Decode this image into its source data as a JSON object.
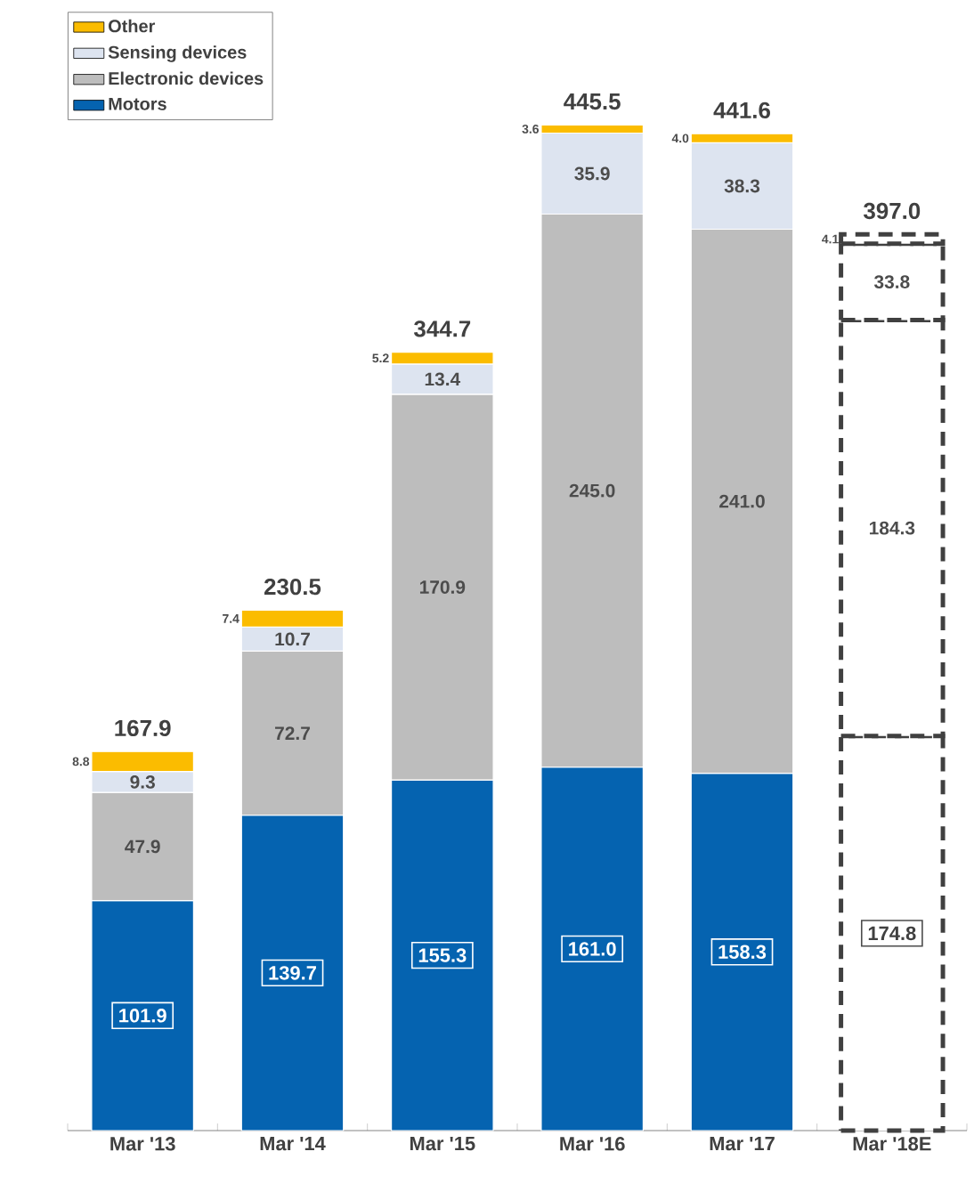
{
  "chart_data": {
    "type": "bar",
    "stacked": true,
    "legend": "top left",
    "categories": [
      "Mar '13",
      "Mar '14",
      "Mar '15",
      "Mar '16",
      "Mar '17",
      "Mar '18E"
    ],
    "series": [
      {
        "name": "Motors",
        "color": "#0563b0",
        "colors": [
          "#0563b0",
          "#0563b0",
          "#0563b0",
          "#0563b0",
          "#0563b0",
          "#ffffff"
        ],
        "values": [
          101.9,
          139.7,
          155.3,
          161.0,
          158.3,
          174.8
        ],
        "value_labels": [
          "101.9",
          "139.7",
          "155.3",
          "161.0",
          "158.3",
          "174.8"
        ]
      },
      {
        "name": "Electronic devices",
        "color": "#bdbdbd",
        "colors": [
          "#bdbdbd",
          "#bdbdbd",
          "#bdbdbd",
          "#bdbdbd",
          "#bdbdbd",
          "#ffffff"
        ],
        "values": [
          47.9,
          72.7,
          170.9,
          245.0,
          241.0,
          184.3
        ],
        "value_labels": [
          "47.9",
          "72.7",
          "170.9",
          "245.0",
          "241.0",
          "184.3"
        ]
      },
      {
        "name": "Sensing devices",
        "color": "#dde4f0",
        "colors": [
          "#dde4f0",
          "#dde4f0",
          "#dde4f0",
          "#dde4f0",
          "#dde4f0",
          "#ffffff"
        ],
        "values": [
          9.3,
          10.7,
          13.4,
          35.9,
          38.3,
          33.8
        ],
        "value_labels": [
          "9.3",
          "10.7",
          "13.4",
          "35.9",
          "38.3",
          "33.8"
        ]
      },
      {
        "name": "Other",
        "color": "#fbbc00",
        "colors": [
          "#fbbc00",
          "#fbbc00",
          "#fbbc00",
          "#fbbc00",
          "#fbbc00",
          "#ffffff"
        ],
        "values": [
          8.8,
          7.4,
          5.2,
          3.6,
          4.0,
          4.1
        ],
        "value_labels": [
          "8.8",
          "7.4",
          "5.2",
          "3.6",
          "4.0",
          "4.1"
        ]
      }
    ],
    "totals": [
      "167.9",
      "230.5",
      "344.7",
      "445.5",
      "441.6",
      "397.0"
    ]
  }
}
